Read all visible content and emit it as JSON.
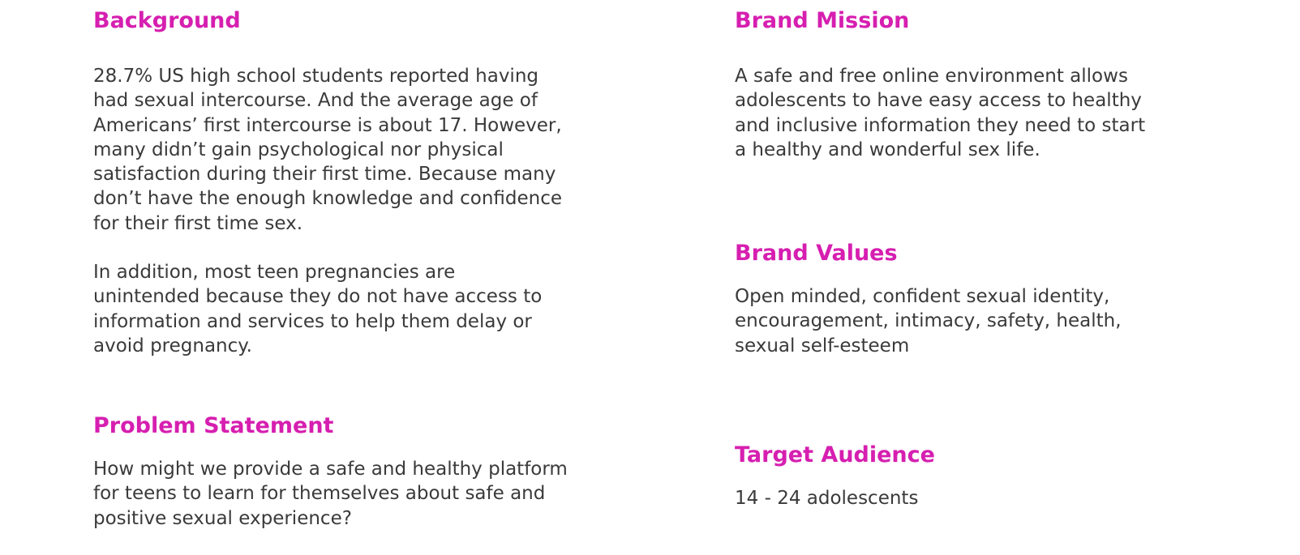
{
  "colors": {
    "heading": "#d61fb0",
    "body_text": "#3a3a3a",
    "background": "#ffffff"
  },
  "background": {
    "heading": "Background",
    "paragraph1": [
      "28.7% US high school students reported having",
      "had sexual intercourse. And the average age of",
      "Americans’ first intercourse is about 17. However,",
      "many didn’t gain psychological nor physical",
      "satisfaction during their first time. Because many",
      "don’t have the enough knowledge and confidence",
      "for their first time sex."
    ],
    "paragraph2": [
      "In addition, most teen pregnancies are",
      "unintended because they do not have access to",
      "information and services to help them delay or",
      "avoid pregnancy."
    ]
  },
  "problem_statement": {
    "heading": "Problem Statement",
    "lines": [
      "How might we provide a safe and healthy platform",
      "for teens to learn for themselves about safe and",
      "positive sexual experience?"
    ]
  },
  "brand_mission": {
    "heading": "Brand Mission",
    "lines": [
      "A safe and free online environment allows",
      "adolescents to have easy access to healthy",
      "and inclusive information they need to start",
      "a healthy and wonderful sex life."
    ]
  },
  "brand_values": {
    "heading": "Brand Values",
    "lines": [
      "Open minded, confident sexual identity,",
      "encouragement, intimacy, safety, health,",
      "sexual self-esteem"
    ]
  },
  "target_audience": {
    "heading": "Target Audience",
    "lines": [
      "14 - 24 adolescents"
    ]
  }
}
